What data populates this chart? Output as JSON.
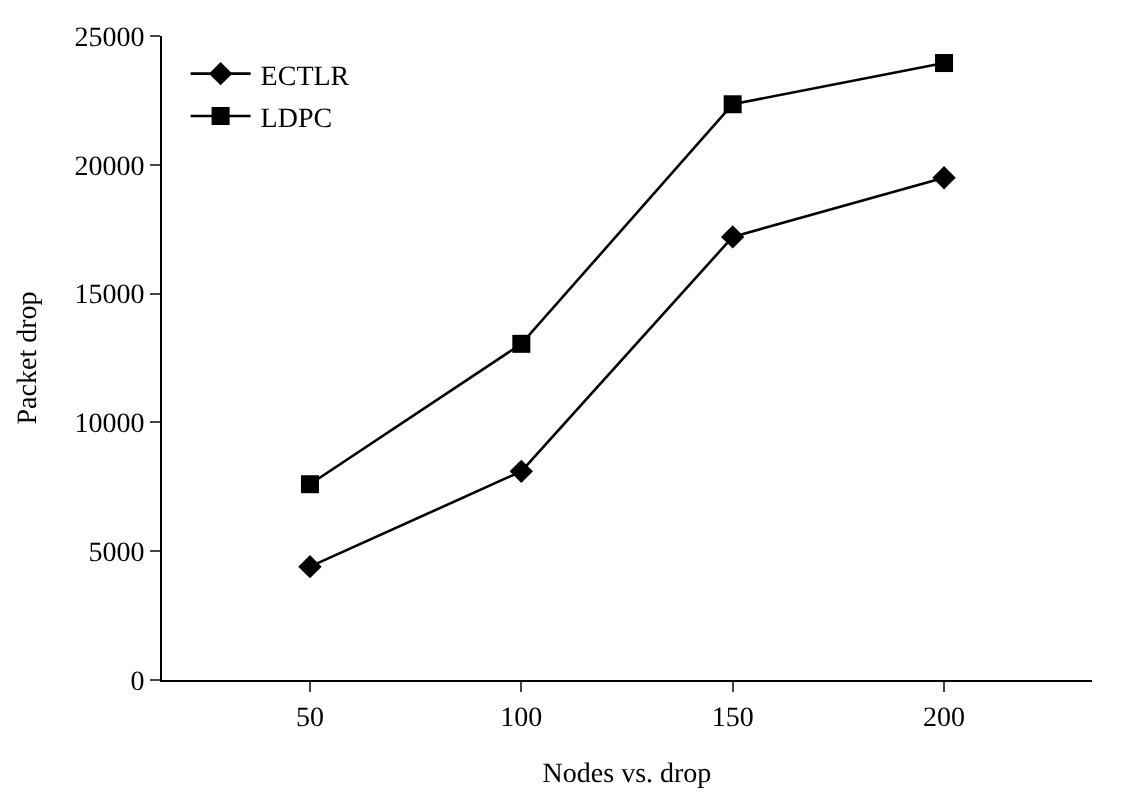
{
  "chart_data": {
    "type": "line",
    "xlabel": "Nodes vs. drop",
    "ylabel": "Packet drop",
    "categories": [
      "50",
      "100",
      "150",
      "200"
    ],
    "series": [
      {
        "name": "ECTLR",
        "color": "#000000",
        "marker": "diamond",
        "values": [
          4400,
          8100,
          17200,
          19500
        ]
      },
      {
        "name": "LDPC",
        "color": "#000000",
        "marker": "square",
        "values": [
          7600,
          13050,
          22350,
          23950
        ]
      }
    ],
    "ylim": [
      0,
      25000
    ],
    "yticks": [
      0,
      5000,
      10000,
      15000,
      20000,
      25000
    ],
    "legend": "top left",
    "line_style": "solid"
  }
}
